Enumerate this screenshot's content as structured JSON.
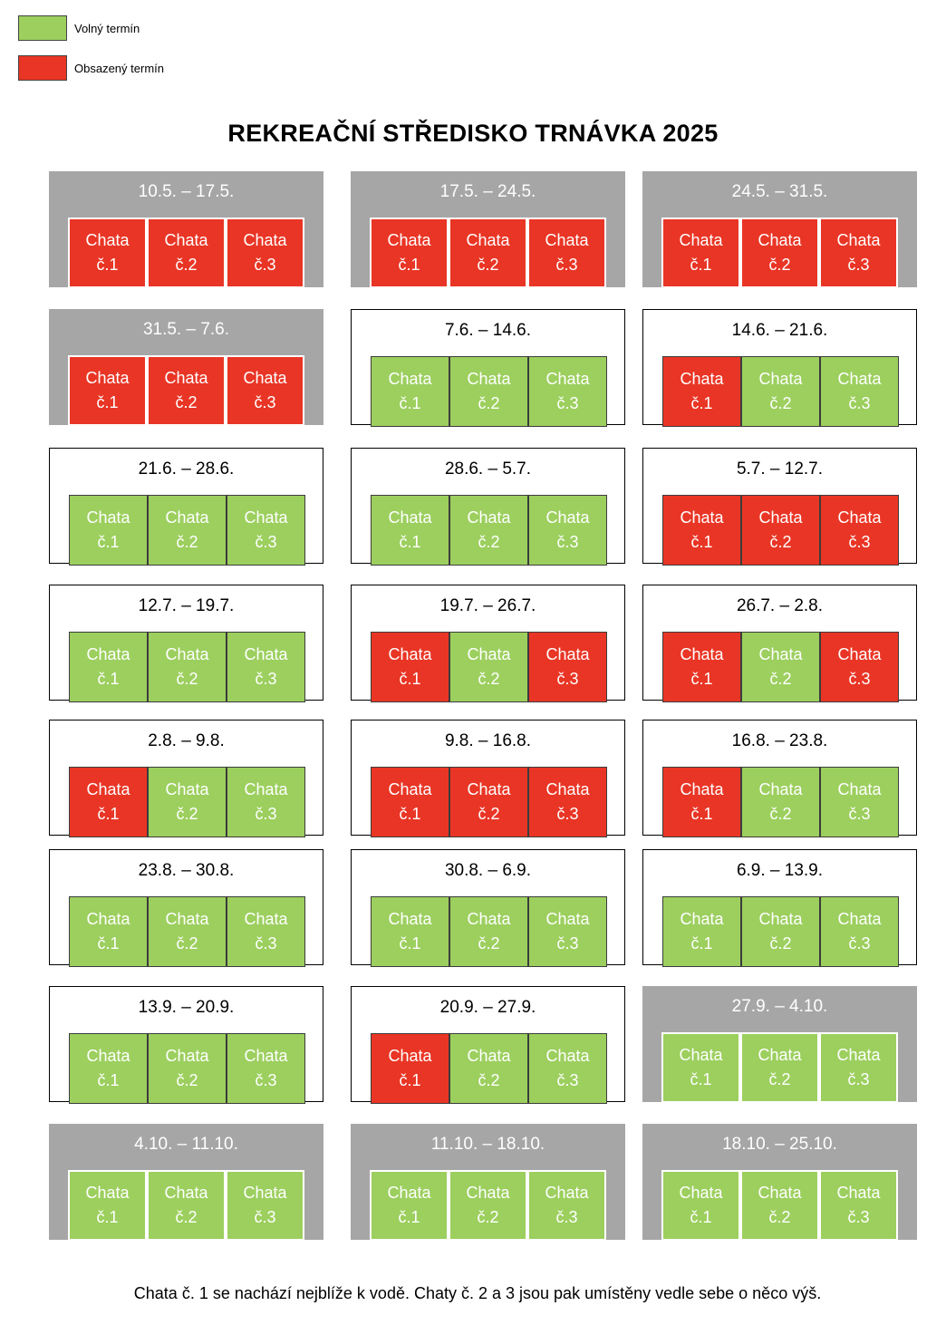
{
  "colors": {
    "available": "#9ccf5e",
    "booked": "#e93525",
    "past_card": "#a6a6a6"
  },
  "legend": [
    {
      "label": "Volný termín",
      "status": "available"
    },
    {
      "label": "Obsazený termín",
      "status": "booked"
    }
  ],
  "title": "REKREAČNÍ STŘEDISKO TRNÁVKA 2025",
  "cabin_label": {
    "word": "Chata",
    "numbers": [
      "č.1",
      "č.2",
      "č.3"
    ]
  },
  "weeks": [
    {
      "date": "10.5. – 17.5.",
      "state": "past",
      "cabins": [
        "booked",
        "booked",
        "booked"
      ]
    },
    {
      "date": "17.5. – 24.5.",
      "state": "past",
      "cabins": [
        "booked",
        "booked",
        "booked"
      ]
    },
    {
      "date": "24.5. – 31.5.",
      "state": "past",
      "cabins": [
        "booked",
        "booked",
        "booked"
      ]
    },
    {
      "date": "31.5. – 7.6.",
      "state": "past",
      "cabins": [
        "booked",
        "booked",
        "booked"
      ]
    },
    {
      "date": "7.6. – 14.6.",
      "state": "current",
      "cabins": [
        "available",
        "available",
        "available"
      ]
    },
    {
      "date": "14.6. – 21.6.",
      "state": "current",
      "cabins": [
        "booked",
        "available",
        "available"
      ]
    },
    {
      "date": "21.6. – 28.6.",
      "state": "current",
      "cabins": [
        "available",
        "available",
        "available"
      ]
    },
    {
      "date": "28.6. – 5.7.",
      "state": "current",
      "cabins": [
        "available",
        "available",
        "available"
      ]
    },
    {
      "date": "5.7. – 12.7.",
      "state": "current",
      "cabins": [
        "booked",
        "booked",
        "booked"
      ]
    },
    {
      "date": "12.7. – 19.7.",
      "state": "current",
      "cabins": [
        "available",
        "available",
        "available"
      ]
    },
    {
      "date": "19.7. – 26.7.",
      "state": "current",
      "cabins": [
        "booked",
        "available",
        "booked"
      ]
    },
    {
      "date": "26.7. – 2.8.",
      "state": "current",
      "cabins": [
        "booked",
        "available",
        "booked"
      ]
    },
    {
      "date": "2.8. – 9.8.",
      "state": "current",
      "cabins": [
        "booked",
        "available",
        "available"
      ]
    },
    {
      "date": "9.8. – 16.8.",
      "state": "current",
      "cabins": [
        "booked",
        "booked",
        "booked"
      ]
    },
    {
      "date": "16.8. – 23.8.",
      "state": "current",
      "cabins": [
        "booked",
        "available",
        "available"
      ]
    },
    {
      "date": "23.8. – 30.8.",
      "state": "current",
      "cabins": [
        "available",
        "available",
        "available"
      ]
    },
    {
      "date": "30.8. – 6.9.",
      "state": "current",
      "cabins": [
        "available",
        "available",
        "available"
      ]
    },
    {
      "date": "6.9. – 13.9.",
      "state": "current",
      "cabins": [
        "available",
        "available",
        "available"
      ]
    },
    {
      "date": "13.9. – 20.9.",
      "state": "current",
      "cabins": [
        "available",
        "available",
        "available"
      ]
    },
    {
      "date": "20.9. – 27.9.",
      "state": "current",
      "cabins": [
        "booked",
        "available",
        "available"
      ]
    },
    {
      "date": "27.9. – 4.10.",
      "state": "past",
      "cabins": [
        "available",
        "available",
        "available"
      ]
    },
    {
      "date": "4.10. – 11.10.",
      "state": "past",
      "cabins": [
        "available",
        "available",
        "available"
      ]
    },
    {
      "date": "11.10. – 18.10.",
      "state": "past",
      "cabins": [
        "available",
        "available",
        "available"
      ]
    },
    {
      "date": "18.10. – 25.10.",
      "state": "past",
      "cabins": [
        "available",
        "available",
        "available"
      ]
    }
  ],
  "footer_note": "Chata č. 1 se nachází nejblíže k vodě. Chaty č. 2 a 3 jsou pak umístěny vedle sebe o něco výš."
}
